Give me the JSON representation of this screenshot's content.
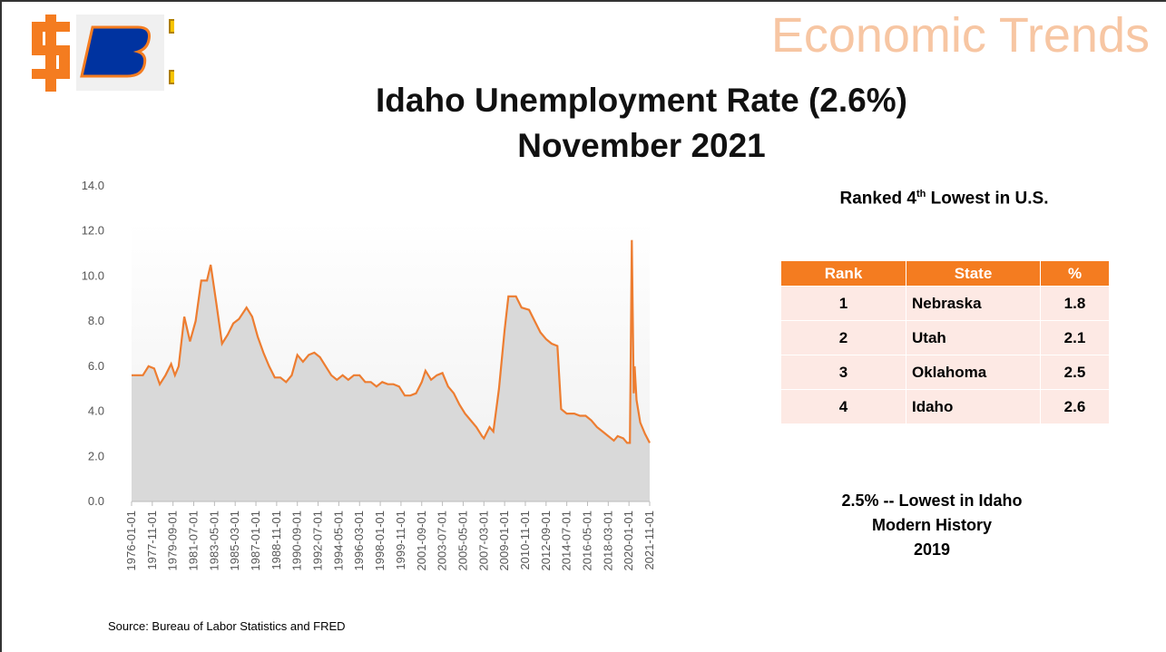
{
  "header": {
    "title": "Economic Trends"
  },
  "chart_data": {
    "type": "line",
    "title": [
      "Idaho Unemployment Rate (2.6%)",
      "November 2021"
    ],
    "color": "#ed7d31",
    "area_color": "#d9d9d9",
    "x": [
      "1976-01-01",
      "1977-01-01",
      "1977-07-01",
      "1978-01-01",
      "1978-07-01",
      "1979-01-01",
      "1979-07-01",
      "1979-11-01",
      "1980-03-01",
      "1980-09-01",
      "1981-03-01",
      "1981-09-01",
      "1982-03-01",
      "1982-09-01",
      "1983-01-01",
      "1983-07-01",
      "1984-01-01",
      "1984-07-01",
      "1985-01-01",
      "1985-07-01",
      "1986-03-01",
      "1986-09-01",
      "1987-03-01",
      "1987-09-01",
      "1988-03-01",
      "1988-09-01",
      "1989-03-01",
      "1989-09-01",
      "1990-03-01",
      "1990-09-01",
      "1991-03-01",
      "1991-09-01",
      "1992-03-01",
      "1992-09-01",
      "1993-03-01",
      "1993-09-01",
      "1994-03-01",
      "1994-09-01",
      "1995-03-01",
      "1995-09-01",
      "1996-03-01",
      "1996-09-01",
      "1997-03-01",
      "1997-09-01",
      "1998-03-01",
      "1998-09-01",
      "1999-03-01",
      "1999-09-01",
      "2000-03-01",
      "2000-09-01",
      "2001-03-01",
      "2001-09-01",
      "2002-01-01",
      "2002-07-01",
      "2003-01-01",
      "2003-07-01",
      "2004-01-01",
      "2004-07-01",
      "2005-01-01",
      "2005-07-01",
      "2006-01-01",
      "2006-07-01",
      "2007-01-01",
      "2007-03-01",
      "2007-09-01",
      "2008-01-01",
      "2008-07-01",
      "2009-01-01",
      "2009-05-01",
      "2010-01-01",
      "2010-07-01",
      "2011-03-01",
      "2011-09-01",
      "2012-03-01",
      "2012-09-01",
      "2013-03-01",
      "2013-09-01",
      "2014-01-01",
      "2014-07-01",
      "2015-03-01",
      "2015-09-01",
      "2016-03-01",
      "2016-09-01",
      "2017-03-01",
      "2017-09-01",
      "2018-03-01",
      "2018-09-01",
      "2019-01-01",
      "2019-07-01",
      "2019-11-01",
      "2020-02-01",
      "2020-04-01",
      "2020-06-01",
      "2020-07-01",
      "2020-09-01",
      "2021-01-01",
      "2021-06-01",
      "2021-11-01"
    ],
    "values": [
      5.6,
      5.6,
      6.0,
      5.9,
      5.2,
      5.6,
      6.1,
      5.6,
      6.0,
      8.2,
      7.1,
      8.0,
      9.8,
      9.8,
      10.5,
      8.8,
      7.0,
      7.4,
      7.9,
      8.1,
      8.6,
      8.2,
      7.3,
      6.6,
      6.0,
      5.5,
      5.5,
      5.3,
      5.6,
      6.5,
      6.2,
      6.5,
      6.6,
      6.4,
      6.0,
      5.6,
      5.4,
      5.6,
      5.4,
      5.6,
      5.6,
      5.3,
      5.3,
      5.1,
      5.3,
      5.2,
      5.2,
      5.1,
      4.7,
      4.7,
      4.8,
      5.3,
      5.8,
      5.4,
      5.6,
      5.7,
      5.1,
      4.8,
      4.3,
      3.9,
      3.6,
      3.3,
      2.9,
      2.8,
      3.3,
      3.1,
      5.0,
      7.6,
      9.1,
      9.1,
      8.6,
      8.5,
      8.0,
      7.5,
      7.2,
      7.0,
      6.9,
      4.1,
      3.9,
      3.9,
      3.8,
      3.8,
      3.6,
      3.3,
      3.1,
      2.9,
      2.7,
      2.9,
      2.8,
      2.6,
      2.6,
      11.6,
      4.8,
      6.0,
      4.5,
      3.5,
      3.0,
      2.6
    ],
    "xticks": [
      "1976-01-01",
      "1977-11-01",
      "1979-09-01",
      "1981-07-01",
      "1983-05-01",
      "1985-03-01",
      "1987-01-01",
      "1988-11-01",
      "1990-09-01",
      "1992-07-01",
      "1994-05-01",
      "1996-03-01",
      "1998-01-01",
      "1999-11-01",
      "2001-09-01",
      "2003-07-01",
      "2005-05-01",
      "2007-03-01",
      "2009-01-01",
      "2010-11-01",
      "2012-09-01",
      "2014-07-01",
      "2016-05-01",
      "2018-03-01",
      "2020-01-01",
      "2021-11-01"
    ],
    "ylim": [
      0,
      14
    ],
    "yticks": [
      {
        "value": 0,
        "label": "0.0"
      },
      {
        "value": 2,
        "label": "2.0"
      },
      {
        "value": 4,
        "label": "4.0"
      },
      {
        "value": 6,
        "label": "6.0"
      },
      {
        "value": 8,
        "label": "8.0"
      },
      {
        "value": 10,
        "label": "10.0"
      },
      {
        "value": 12,
        "label": "12.0"
      },
      {
        "value": 14,
        "label": "14.0"
      }
    ]
  },
  "ranking": {
    "heading": {
      "pre": "Ranked 4",
      "sup": "th",
      "post": " Lowest in U.S."
    },
    "columns": [
      "Rank",
      "State",
      "%"
    ],
    "rows": [
      [
        "1",
        "Nebraska",
        "1.8"
      ],
      [
        "2",
        "Utah",
        "2.1"
      ],
      [
        "3",
        "Oklahoma",
        "2.5"
      ],
      [
        "4",
        "Idaho",
        "2.6"
      ]
    ]
  },
  "note": [
    "2.5% -- Lowest in Idaho",
    "Modern History",
    "2019"
  ],
  "source": "Source: Bureau of Labor Statistics and FRED"
}
